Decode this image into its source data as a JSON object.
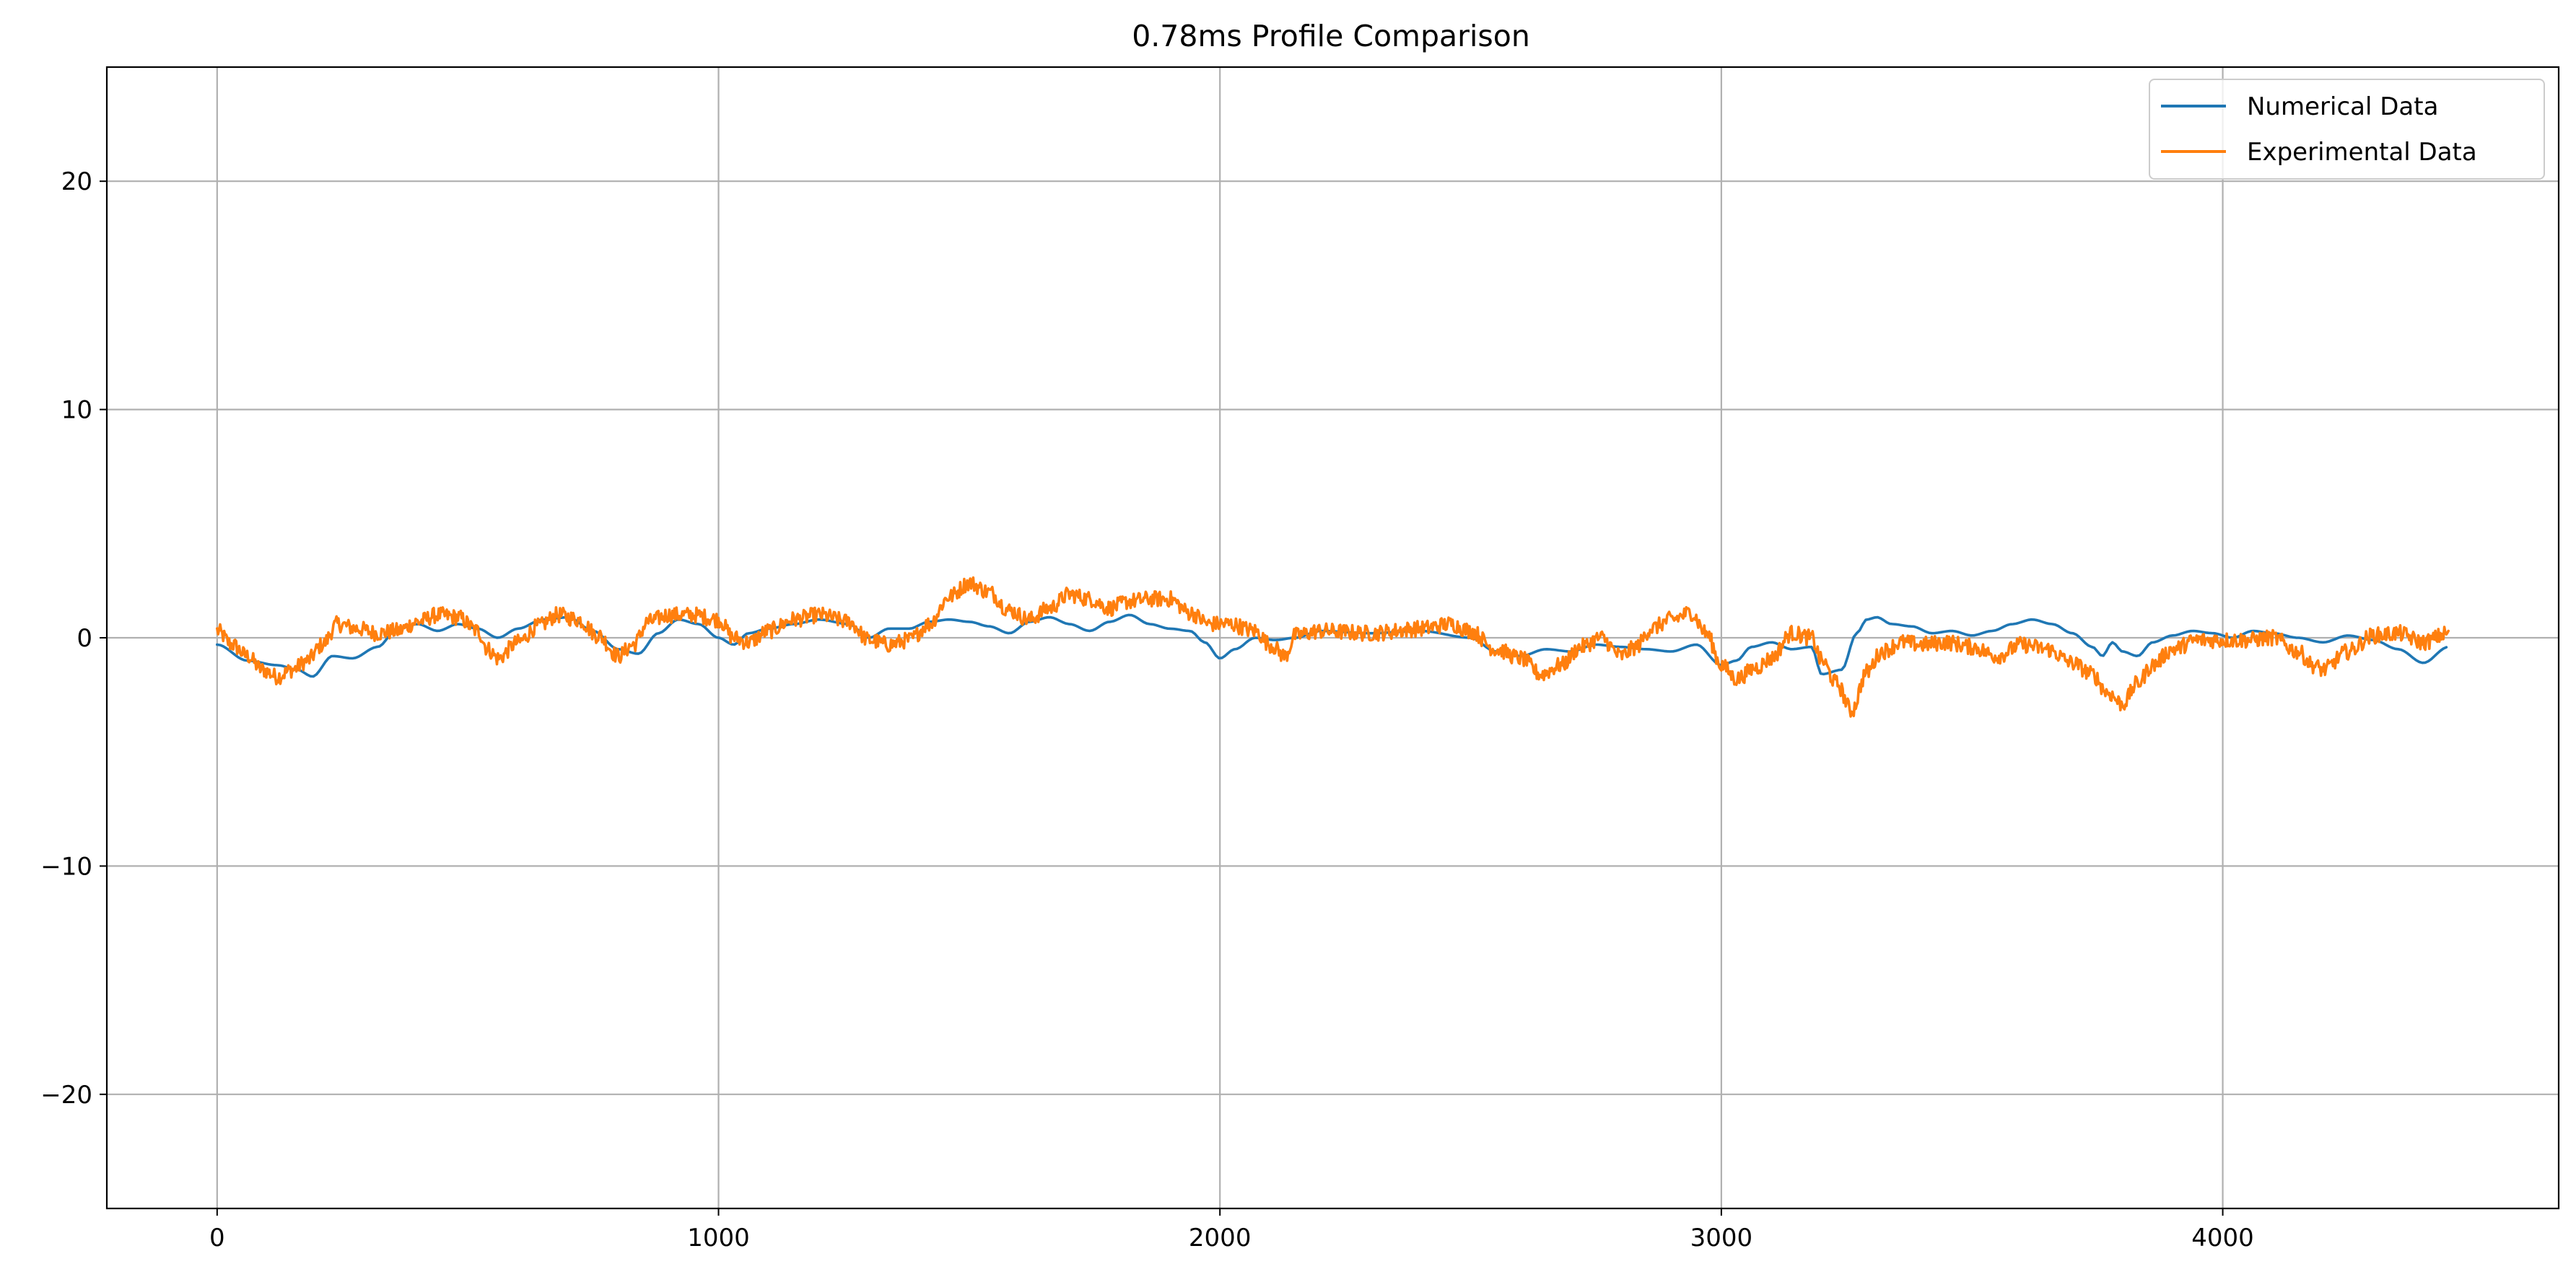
{
  "chart_data": {
    "type": "line",
    "title": "0.78ms Profile Comparison",
    "xlabel": "",
    "ylabel": "",
    "xlim": [
      -220,
      4670
    ],
    "ylim": [
      -25,
      25
    ],
    "xticks": [
      0,
      1000,
      2000,
      3000,
      4000
    ],
    "yticks": [
      -20,
      -10,
      0,
      10,
      20
    ],
    "xtick_labels": [
      "0",
      "1000",
      "2000",
      "3000",
      "4000"
    ],
    "ytick_labels": [
      "−20",
      "−10",
      "0",
      "10",
      "20"
    ],
    "grid": true,
    "legend": "top-right",
    "series": [
      {
        "name": "Numerical Data",
        "color": "#1f77b4",
        "noise": 0,
        "x": [
          0,
          60,
          120,
          160,
          190,
          230,
          270,
          320,
          360,
          400,
          440,
          480,
          520,
          560,
          600,
          650,
          700,
          750,
          800,
          840,
          880,
          920,
          960,
          1000,
          1030,
          1060,
          1100,
          1150,
          1200,
          1260,
          1300,
          1340,
          1380,
          1420,
          1460,
          1500,
          1540,
          1580,
          1620,
          1660,
          1700,
          1740,
          1780,
          1820,
          1860,
          1900,
          1940,
          1970,
          2000,
          2030,
          2070,
          2110,
          2150,
          2200,
          2300,
          2400,
          2500,
          2550,
          2600,
          2650,
          2700,
          2750,
          2800,
          2850,
          2900,
          2950,
          3000,
          3030,
          3060,
          3100,
          3140,
          3180,
          3200,
          3240,
          3270,
          3290,
          3310,
          3340,
          3380,
          3420,
          3460,
          3500,
          3540,
          3580,
          3620,
          3660,
          3700,
          3740,
          3760,
          3780,
          3800,
          3830,
          3860,
          3900,
          3940,
          3980,
          4020,
          4060,
          4100,
          4150,
          4200,
          4250,
          4300,
          4350,
          4400,
          4450
        ],
        "y": [
          -0.3,
          -1.0,
          -1.2,
          -1.4,
          -1.7,
          -0.8,
          -0.9,
          -0.4,
          0.4,
          0.6,
          0.3,
          0.6,
          0.4,
          0.0,
          0.4,
          0.8,
          0.9,
          0.3,
          -0.5,
          -0.7,
          0.2,
          0.8,
          0.6,
          0.0,
          -0.3,
          0.2,
          0.4,
          0.6,
          0.8,
          0.6,
          0.0,
          0.4,
          0.4,
          0.7,
          0.8,
          0.7,
          0.5,
          0.2,
          0.7,
          0.9,
          0.6,
          0.3,
          0.7,
          1.0,
          0.6,
          0.4,
          0.3,
          -0.2,
          -0.9,
          -0.5,
          0.0,
          -0.1,
          0.0,
          0.3,
          0.2,
          0.3,
          0.0,
          -0.6,
          -0.8,
          -0.5,
          -0.6,
          -0.3,
          -0.4,
          -0.5,
          -0.6,
          -0.3,
          -1.2,
          -1.0,
          -0.4,
          -0.2,
          -0.5,
          -0.4,
          -1.6,
          -1.4,
          0.2,
          0.8,
          0.9,
          0.6,
          0.5,
          0.2,
          0.3,
          0.1,
          0.3,
          0.6,
          0.8,
          0.6,
          0.2,
          -0.4,
          -0.8,
          -0.2,
          -0.6,
          -0.8,
          -0.2,
          0.1,
          0.3,
          0.2,
          0.0,
          0.3,
          0.2,
          0.0,
          -0.2,
          0.1,
          -0.1,
          -0.5,
          -1.1,
          -0.4
        ]
      },
      {
        "name": "Experimental Data",
        "color": "#ff7f0e",
        "noise": 0.35,
        "x": [
          0,
          30,
          60,
          90,
          120,
          150,
          180,
          210,
          240,
          280,
          320,
          360,
          400,
          440,
          480,
          520,
          540,
          560,
          600,
          640,
          680,
          720,
          760,
          800,
          830,
          860,
          900,
          950,
          1000,
          1030,
          1060,
          1100,
          1150,
          1200,
          1260,
          1300,
          1340,
          1380,
          1420,
          1460,
          1500,
          1540,
          1580,
          1620,
          1660,
          1700,
          1740,
          1780,
          1820,
          1860,
          1900,
          1940,
          1980,
          2020,
          2070,
          2100,
          2130,
          2150,
          2200,
          2300,
          2400,
          2460,
          2500,
          2550,
          2600,
          2640,
          2680,
          2720,
          2760,
          2800,
          2830,
          2860,
          2900,
          2940,
          2970,
          3000,
          3030,
          3070,
          3100,
          3140,
          3180,
          3200,
          3230,
          3260,
          3290,
          3320,
          3360,
          3400,
          3450,
          3500,
          3550,
          3600,
          3650,
          3700,
          3740,
          3770,
          3800,
          3830,
          3860,
          3900,
          3950,
          4000,
          4050,
          4100,
          4150,
          4180,
          4200,
          4250,
          4300,
          4350,
          4400,
          4450
        ],
        "y": [
          0.3,
          -0.3,
          -0.8,
          -1.4,
          -1.7,
          -1.4,
          -1.0,
          -0.3,
          0.6,
          0.4,
          0.2,
          0.3,
          0.7,
          1.0,
          0.9,
          0.3,
          -0.5,
          -0.9,
          -0.2,
          0.5,
          1.0,
          0.8,
          0.1,
          -0.8,
          -0.3,
          0.7,
          1.0,
          1.0,
          0.8,
          0.0,
          -0.2,
          0.3,
          0.8,
          1.0,
          0.7,
          -0.1,
          -0.3,
          -0.1,
          0.6,
          1.8,
          2.4,
          2.0,
          1.2,
          0.8,
          1.3,
          1.9,
          1.7,
          1.3,
          1.6,
          1.7,
          1.7,
          1.1,
          0.6,
          0.6,
          0.3,
          -0.3,
          -0.8,
          0.1,
          0.3,
          0.2,
          0.4,
          0.6,
          0.3,
          -0.5,
          -0.9,
          -1.6,
          -1.2,
          -0.4,
          0.0,
          -0.8,
          -0.4,
          0.4,
          0.8,
          1.1,
          0.2,
          -1.2,
          -1.8,
          -1.3,
          -0.9,
          0.2,
          0.0,
          -1.0,
          -2.0,
          -3.2,
          -1.5,
          -0.6,
          -0.2,
          -0.3,
          -0.2,
          -0.4,
          -0.8,
          -0.3,
          -0.5,
          -1.1,
          -1.6,
          -2.4,
          -2.9,
          -2.0,
          -1.2,
          -0.5,
          -0.1,
          -0.1,
          -0.1,
          0.0,
          -0.6,
          -1.2,
          -1.4,
          -0.6,
          0.1,
          0.2,
          -0.2,
          0.2
        ]
      }
    ]
  }
}
